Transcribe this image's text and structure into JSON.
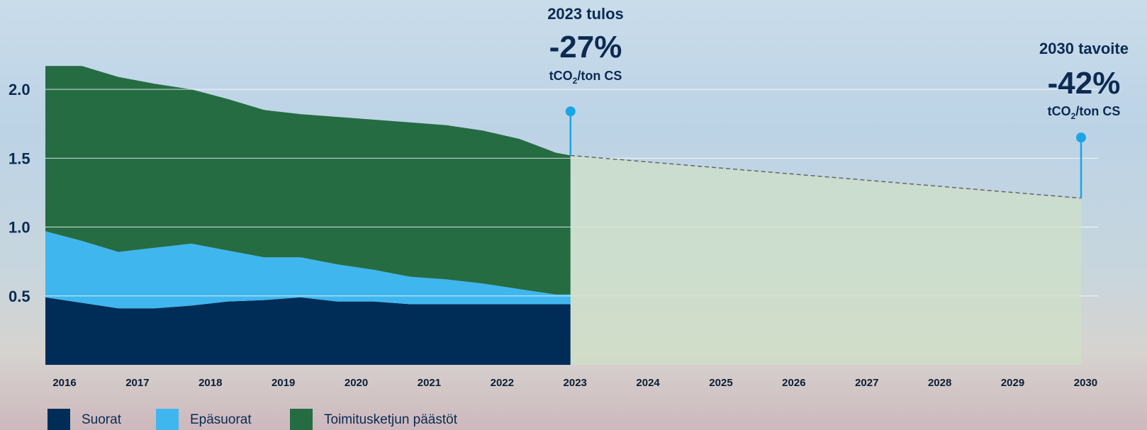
{
  "colors": {
    "direct": "#002d57",
    "indirect": "#40b6ee",
    "supply": "#266c43",
    "forecast": "#cfe0c6",
    "marker": "#1aa5e6",
    "text": "#0c2a52"
  },
  "annotations": {
    "result": {
      "heading": "2023 tulos",
      "value": "-27%",
      "unit_main": "tCO",
      "unit_sub": "2",
      "unit_rest": "/ton CS"
    },
    "target": {
      "heading": "2030 tavoite",
      "value": "-42%",
      "unit_main": "tCO",
      "unit_sub": "2",
      "unit_rest": "/ton CS"
    }
  },
  "legend": [
    {
      "label": "Suorat",
      "color": "#002d57"
    },
    {
      "label": "Epäsuorat",
      "color": "#40b6ee"
    },
    {
      "label": "Toimitusketjun päästöt",
      "color": "#266c43"
    }
  ],
  "chart_data": {
    "type": "area",
    "stacked": true,
    "x": [
      2016,
      2016.5,
      2017,
      2017.5,
      2018,
      2018.5,
      2019,
      2019.5,
      2020,
      2020.5,
      2021,
      2021.5,
      2022,
      2022.5,
      2023,
      2023.2
    ],
    "series": [
      {
        "name": "Suorat",
        "values": [
          0.49,
          0.45,
          0.41,
          0.41,
          0.43,
          0.46,
          0.47,
          0.49,
          0.46,
          0.46,
          0.44,
          0.44,
          0.44,
          0.44,
          0.44,
          0.44
        ]
      },
      {
        "name": "Epäsuorat",
        "values": [
          0.48,
          0.45,
          0.41,
          0.44,
          0.45,
          0.37,
          0.31,
          0.29,
          0.27,
          0.23,
          0.2,
          0.18,
          0.15,
          0.11,
          0.07,
          0.07
        ]
      },
      {
        "name": "Toimitusketjun päästöt",
        "values": [
          1.2,
          1.27,
          1.27,
          1.19,
          1.12,
          1.1,
          1.07,
          1.04,
          1.07,
          1.09,
          1.12,
          1.12,
          1.11,
          1.09,
          1.03,
          1.01
        ]
      }
    ],
    "forecast": {
      "x": [
        2023.2,
        2030.2
      ],
      "y": [
        1.52,
        1.21
      ],
      "style": "dashed"
    },
    "markers": [
      {
        "x": 2023.2,
        "y_from": 1.52,
        "y_to": 1.84
      },
      {
        "x": 2030.2,
        "y_from": 1.21,
        "y_to": 1.65
      }
    ],
    "x_ticks": [
      "2016",
      "2017",
      "2018",
      "2019",
      "2020",
      "2021",
      "2022",
      "2023",
      "2024",
      "2025",
      "2026",
      "2027",
      "2028",
      "2029",
      "2030"
    ],
    "y_ticks": [
      "0.5",
      "1.0",
      "1.5",
      "2.0"
    ],
    "y_tick_values": [
      0.5,
      1.0,
      1.5,
      2.0
    ],
    "ylim": [
      0,
      2.16
    ],
    "xlim": [
      2016,
      2030.2
    ],
    "grid": true,
    "legend_position": "bottom-left"
  }
}
